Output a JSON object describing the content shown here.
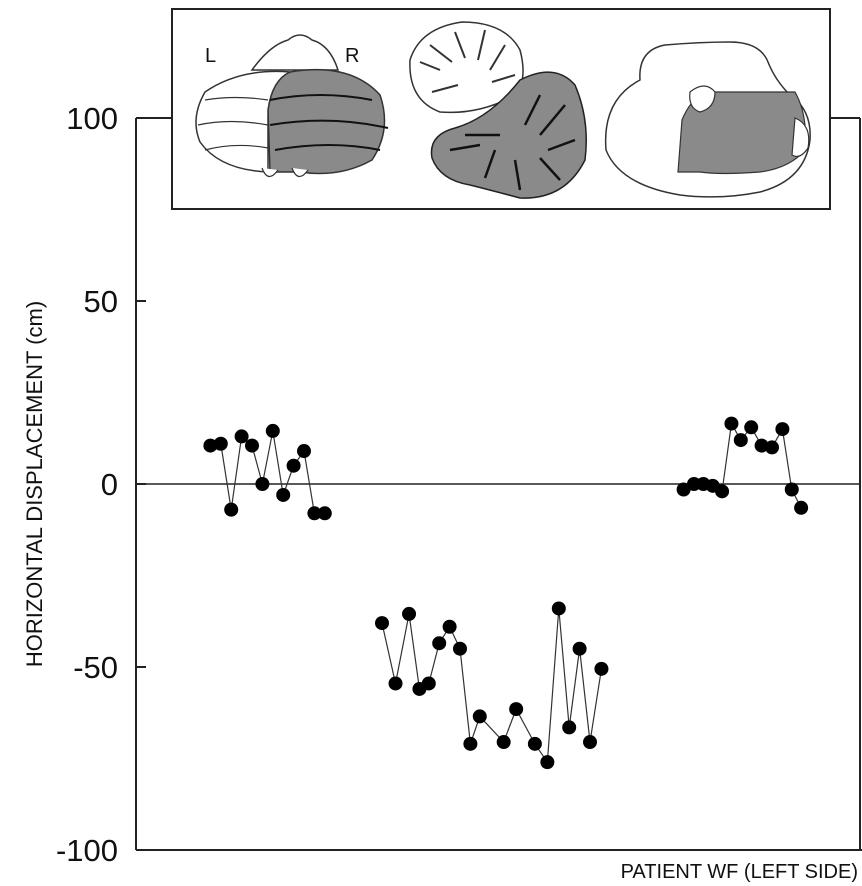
{
  "chart_data": {
    "type": "line",
    "title": "",
    "xlabel": "PATIENT WF (LEFT SIDE)",
    "ylabel": "HORIZONTAL DISPLACEMENT (cm)",
    "ylim": [
      -100,
      100
    ],
    "y_ticks": [
      "100",
      "50",
      "0",
      "-50",
      "-100"
    ],
    "zero_line": true,
    "grid": false,
    "marker": "filled-circle",
    "inset_labels": {
      "left": "L",
      "right": "R"
    },
    "series": [
      {
        "points": [
          {
            "x": 1,
            "y": 10.5
          },
          {
            "x": 2,
            "y": 11
          },
          {
            "x": 3,
            "y": -7
          },
          {
            "x": 4,
            "y": 13
          },
          {
            "x": 5,
            "y": 10.5
          },
          {
            "x": 6,
            "y": 0
          },
          {
            "x": 7,
            "y": 14.5
          },
          {
            "x": 8,
            "y": -3
          },
          {
            "x": 9,
            "y": 5
          },
          {
            "x": 10,
            "y": 9
          },
          {
            "x": 11,
            "y": -8
          },
          {
            "x": 12,
            "y": -8
          }
        ]
      },
      {
        "points": [
          {
            "x": 17.5,
            "y": -38
          },
          {
            "x": 18.8,
            "y": -54.5
          },
          {
            "x": 20.1,
            "y": -35.5
          },
          {
            "x": 21.1,
            "y": -56
          },
          {
            "x": 22,
            "y": -54.5
          },
          {
            "x": 23,
            "y": -43.5
          },
          {
            "x": 24,
            "y": -39
          },
          {
            "x": 25,
            "y": -45
          },
          {
            "x": 26,
            "y": -71
          },
          {
            "x": 26.9,
            "y": -63.5
          },
          {
            "x": 29.2,
            "y": -70.5
          },
          {
            "x": 30.4,
            "y": -61.5
          },
          {
            "x": 32.2,
            "y": -71
          },
          {
            "x": 33.4,
            "y": -76
          },
          {
            "x": 34.5,
            "y": -34
          },
          {
            "x": 35.5,
            "y": -66.5
          },
          {
            "x": 36.5,
            "y": -45
          },
          {
            "x": 37.5,
            "y": -70.5
          },
          {
            "x": 38.6,
            "y": -50.5
          }
        ]
      },
      {
        "points": [
          {
            "x": 46.5,
            "y": -1.5
          },
          {
            "x": 47.5,
            "y": 0
          },
          {
            "x": 48.4,
            "y": 0
          },
          {
            "x": 49.3,
            "y": -0.5
          },
          {
            "x": 50.2,
            "y": -2
          },
          {
            "x": 51.1,
            "y": 16.5
          },
          {
            "x": 52,
            "y": 12
          },
          {
            "x": 53,
            "y": 15.5
          },
          {
            "x": 54,
            "y": 10.5
          },
          {
            "x": 55,
            "y": 10
          },
          {
            "x": 56,
            "y": 15
          },
          {
            "x": 56.9,
            "y": -1.5
          },
          {
            "x": 57.8,
            "y": -6.5
          }
        ]
      }
    ]
  }
}
